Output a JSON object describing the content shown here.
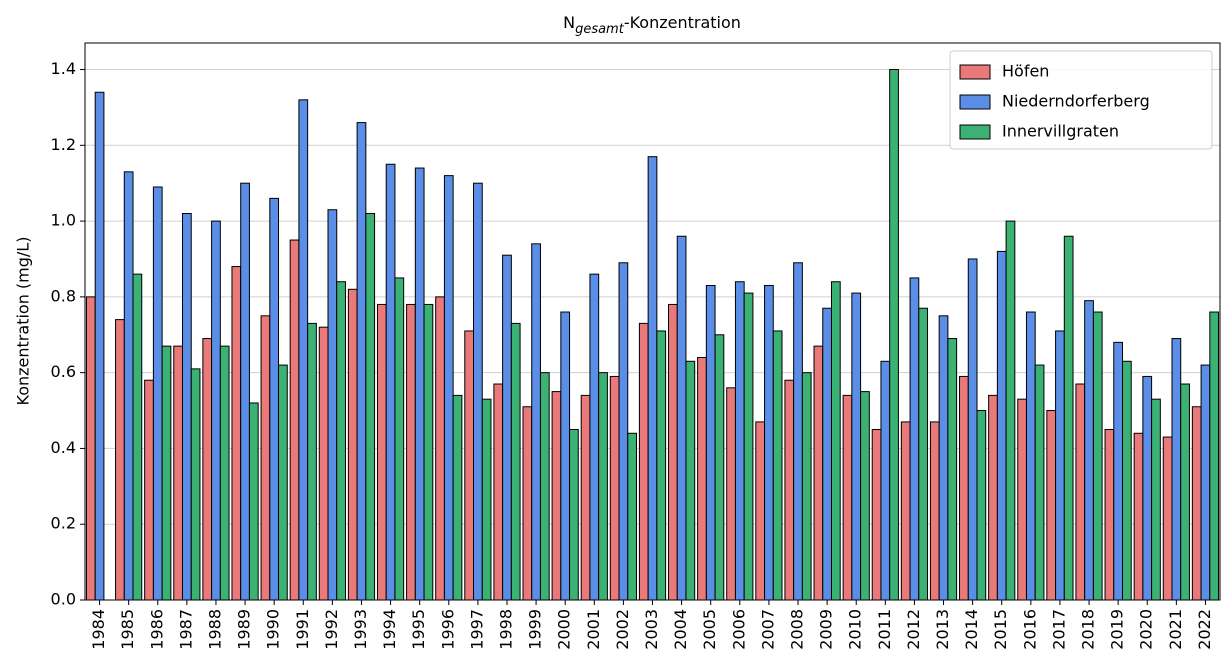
{
  "chart_data": {
    "type": "bar",
    "title": [
      "N",
      "gesamt",
      "-Konzentration"
    ],
    "y_label": "Konzentration (mg/L)",
    "categories": [
      "1984",
      "1985",
      "1986",
      "1987",
      "1988",
      "1989",
      "1990",
      "1991",
      "1992",
      "1993",
      "1994",
      "1995",
      "1996",
      "1997",
      "1998",
      "1999",
      "2000",
      "2001",
      "2002",
      "2003",
      "2004",
      "2005",
      "2006",
      "2007",
      "2008",
      "2009",
      "2010",
      "2011",
      "2012",
      "2013",
      "2014",
      "2015",
      "2016",
      "2017",
      "2018",
      "2019",
      "2020",
      "2021",
      "2022"
    ],
    "series": [
      {
        "name": "Höfen",
        "color": "#ea7a7a",
        "values": [
          0.8,
          0.74,
          0.58,
          0.67,
          0.69,
          0.88,
          0.75,
          0.95,
          0.72,
          0.82,
          0.78,
          0.78,
          0.8,
          0.71,
          0.57,
          0.51,
          0.55,
          0.54,
          0.59,
          0.73,
          0.78,
          0.64,
          0.56,
          0.47,
          0.58,
          0.67,
          0.54,
          0.45,
          0.47,
          0.47,
          0.59,
          0.54,
          0.53,
          0.5,
          0.57,
          0.45,
          0.44,
          0.43,
          0.51
        ]
      },
      {
        "name": "Niederndorferberg",
        "color": "#5b8ee6",
        "values": [
          1.34,
          1.13,
          1.09,
          1.02,
          1.0,
          1.1,
          1.06,
          1.32,
          1.03,
          1.26,
          1.15,
          1.14,
          1.12,
          1.1,
          0.91,
          0.94,
          0.76,
          0.86,
          0.89,
          1.17,
          0.96,
          0.83,
          0.84,
          0.83,
          0.89,
          0.77,
          0.81,
          0.63,
          0.85,
          0.75,
          0.9,
          0.92,
          0.76,
          0.71,
          0.79,
          0.68,
          0.59,
          0.69,
          0.62
        ]
      },
      {
        "name": "Innervillgraten",
        "color": "#3bb273",
        "values": [
          null,
          0.86,
          0.67,
          0.61,
          0.67,
          0.52,
          0.62,
          0.73,
          0.84,
          1.02,
          0.85,
          0.78,
          0.54,
          0.53,
          0.73,
          0.6,
          0.45,
          0.6,
          0.44,
          0.71,
          0.63,
          0.7,
          0.81,
          0.71,
          0.6,
          0.84,
          0.55,
          1.4,
          0.77,
          0.69,
          0.5,
          1.0,
          0.62,
          0.96,
          0.76,
          0.63,
          0.53,
          0.57,
          0.76
        ]
      }
    ],
    "ylim": [
      0,
      1.47
    ],
    "yticks": [
      {
        "value": 0,
        "label": "0.0"
      },
      0.2,
      0.4,
      0.6,
      0.8,
      {
        "value": 1,
        "label": "1.0"
      },
      1.2,
      1.4
    ],
    "grid": true,
    "legend": "upper right"
  }
}
